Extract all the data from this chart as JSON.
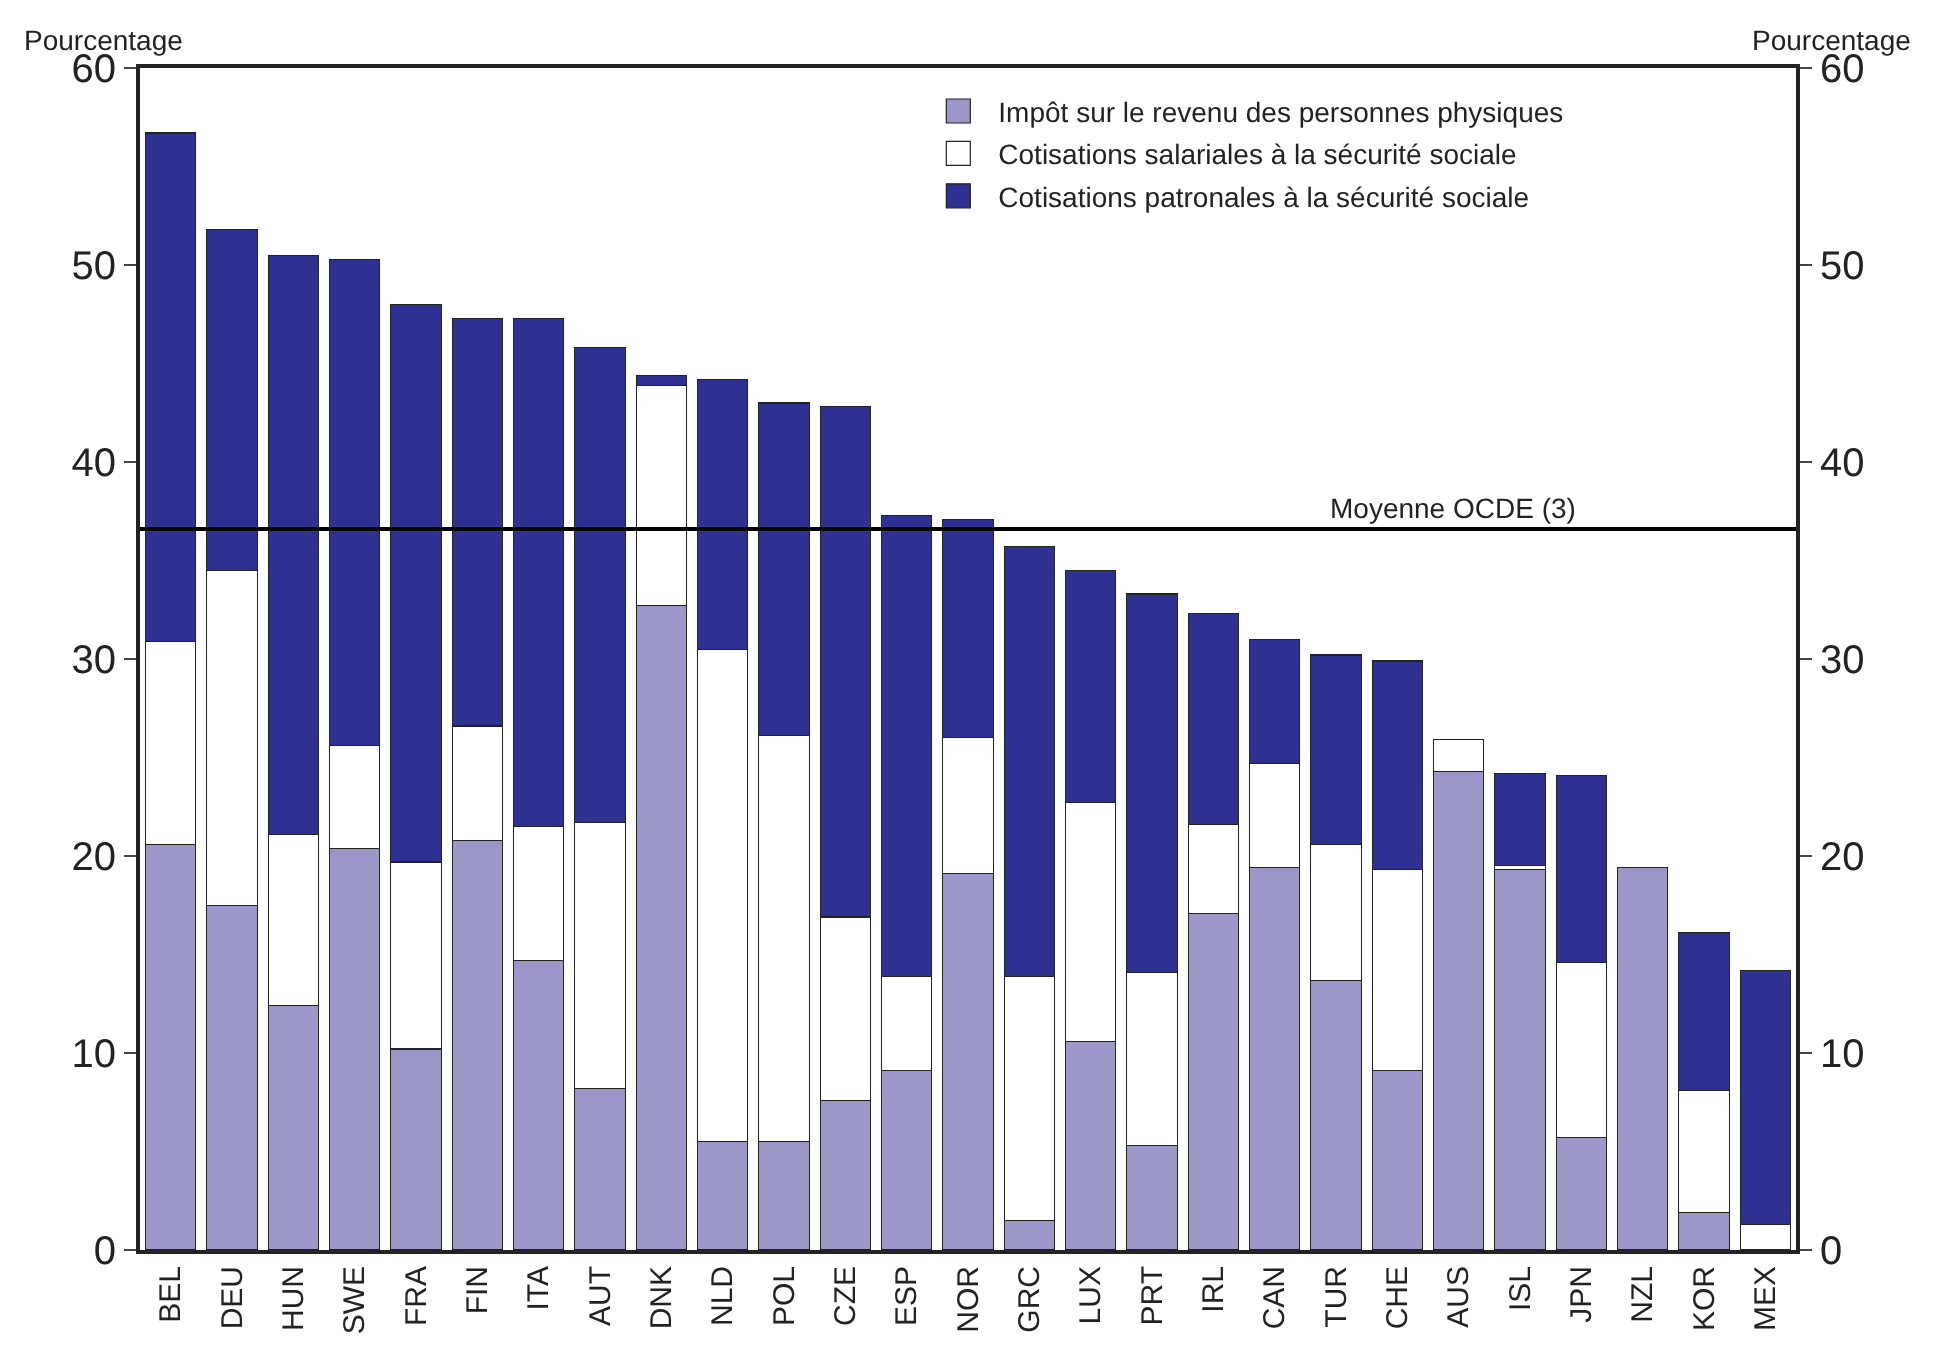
{
  "chart_data": {
    "type": "bar",
    "stacked": true,
    "ylabel": "Pourcentage",
    "y2label": "Pourcentage",
    "categories": [
      "BEL",
      "DEU",
      "HUN",
      "SWE",
      "FRA",
      "FIN",
      "ITA",
      "AUT",
      "DNK",
      "NLD",
      "POL",
      "CZE",
      "ESP",
      "NOR",
      "GRC",
      "LUX",
      "PRT",
      "IRL",
      "CAN",
      "TUR",
      "CHE",
      "AUS",
      "ISL",
      "JPN",
      "NZL",
      "KOR",
      "MEX"
    ],
    "series": [
      {
        "name": "Impôt sur le revenu des personnes physiques",
        "color": "#9b97c9",
        "values": [
          20.6,
          17.5,
          12.4,
          20.4,
          10.2,
          20.8,
          14.7,
          8.2,
          32.7,
          5.5,
          5.5,
          7.6,
          9.1,
          19.1,
          1.5,
          10.6,
          5.3,
          17.1,
          19.4,
          13.7,
          9.1,
          24.3,
          19.3,
          5.7,
          19.4,
          1.9,
          null
        ]
      },
      {
        "name": "Cotisations salariales à la sécurité sociale",
        "color": "#ffffff",
        "values": [
          10.3,
          17.0,
          8.7,
          5.2,
          9.5,
          5.8,
          6.8,
          13.5,
          11.2,
          25.0,
          20.6,
          9.3,
          4.8,
          6.9,
          12.4,
          12.1,
          8.8,
          4.5,
          5.3,
          6.9,
          10.2,
          1.6,
          0.2,
          8.9,
          null,
          6.2,
          1.3
        ]
      },
      {
        "name": "Cotisations patronales à la sécurité sociale",
        "color": "#2e3192",
        "values": [
          25.8,
          17.3,
          29.4,
          24.7,
          28.3,
          20.7,
          25.8,
          24.1,
          0.5,
          13.7,
          16.9,
          25.9,
          23.4,
          11.1,
          21.8,
          11.8,
          19.2,
          10.7,
          6.3,
          9.6,
          10.6,
          null,
          4.7,
          9.5,
          null,
          8.0,
          12.9
        ]
      }
    ],
    "ylim": [
      0,
      60
    ],
    "yticks": [
      0,
      10,
      20,
      30,
      40,
      50,
      60
    ],
    "y2lim": [
      0,
      60
    ],
    "y2ticks": [
      0,
      10,
      20,
      30,
      40,
      50,
      60
    ],
    "ref_lines": [
      {
        "axis": "y",
        "value": 36.6,
        "label": "Moyenne OCDE (3)",
        "color": "#000000"
      }
    ],
    "legend": "top right"
  }
}
